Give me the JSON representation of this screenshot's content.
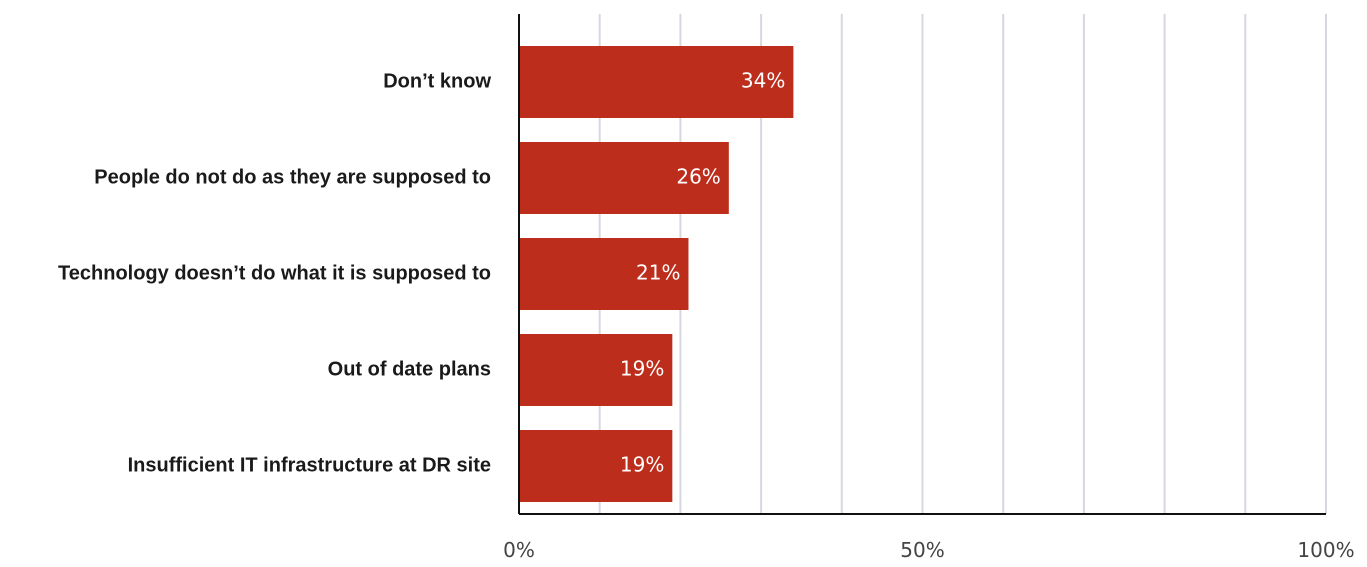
{
  "chart_data": {
    "type": "bar",
    "orientation": "horizontal",
    "categories": [
      "Don’t know",
      "People do not do as they are supposed to",
      "Technology doesn’t do what it is supposed to",
      "Out of date plans",
      "Insufficient IT infrastructure at DR site"
    ],
    "values": [
      34,
      26,
      21,
      19,
      19
    ],
    "value_labels": [
      "34%",
      "26%",
      "21%",
      "19%",
      "19%"
    ],
    "xlim": [
      0,
      100
    ],
    "x_ticks": [
      0,
      50,
      100
    ],
    "x_tick_labels": [
      "0%",
      "50%",
      "100%"
    ],
    "grid": true,
    "grid_step": 10,
    "bar_color": "#bc2d1c",
    "grid_color": "#d7d7e0",
    "legend": "none"
  }
}
